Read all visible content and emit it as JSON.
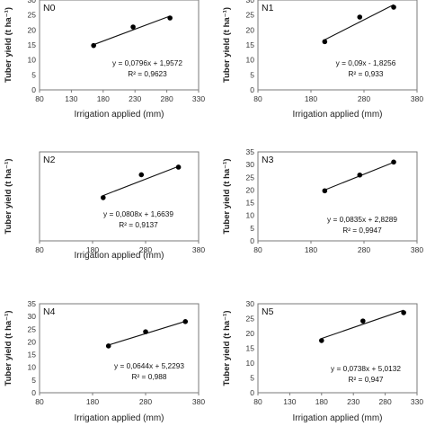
{
  "chart_data": [
    {
      "type": "scatter",
      "panel_label": "N0",
      "xlabel": "Irrigation applied (mm)",
      "ylabel": "Tuber yield (t ha⁻¹)",
      "xlim": [
        80,
        330
      ],
      "ylim": [
        0,
        30
      ],
      "x_ticks": [
        "80",
        "130",
        "180",
        "230",
        "280",
        "330"
      ],
      "y_ticks": [
        "0",
        "5",
        "10",
        "15",
        "20",
        "25",
        "30"
      ],
      "points": [
        {
          "x": 165,
          "y": 14.8
        },
        {
          "x": 227,
          "y": 21.0
        },
        {
          "x": 285,
          "y": 24.0
        }
      ],
      "trendline": {
        "equation": "y = 0,0796x + 1,9572",
        "r2": "R² = 0,9623",
        "slope": 0.0796,
        "intercept": 1.9572,
        "x_range": [
          165,
          285
        ]
      }
    },
    {
      "type": "scatter",
      "panel_label": "N1",
      "xlabel": "Irrigation applied (mm)",
      "ylabel": "Tuber yield (t ha⁻¹)",
      "xlim": [
        80,
        380
      ],
      "ylim": [
        0,
        30
      ],
      "x_ticks": [
        "80",
        "180",
        "280",
        "380"
      ],
      "y_ticks": [
        "0",
        "5",
        "10",
        "15",
        "20",
        "25",
        "30"
      ],
      "points": [
        {
          "x": 206,
          "y": 16.1
        },
        {
          "x": 272,
          "y": 24.3
        },
        {
          "x": 336,
          "y": 27.6
        }
      ],
      "trendline": {
        "equation": "y = 0,09x - 1,8256",
        "r2": "R² = 0,933",
        "slope": 0.09,
        "intercept": -1.8256,
        "x_range": [
          206,
          336
        ]
      }
    },
    {
      "type": "scatter",
      "panel_label": "N2",
      "xlabel": "Irrigation applied (mm)",
      "ylabel": "Tuber yield (t ha⁻¹)",
      "xlim": [
        80,
        380
      ],
      "ylim": [
        0,
        35
      ],
      "x_ticks": [
        "80",
        "180",
        "280",
        "380"
      ],
      "y_ticks": [],
      "points": [
        {
          "x": 200,
          "y": 17.0
        },
        {
          "x": 272,
          "y": 26.0
        },
        {
          "x": 342,
          "y": 29.0
        }
      ],
      "trendline": {
        "equation": "y = 0,0808x + 1,6639",
        "r2": "R² = 0,9137",
        "slope": 0.0808,
        "intercept": 1.6639,
        "x_range": [
          200,
          342
        ]
      }
    },
    {
      "type": "scatter",
      "panel_label": "N3",
      "xlabel": "",
      "ylabel": "Tuber yield (t ha⁻¹)",
      "xlim": [
        80,
        380
      ],
      "ylim": [
        0,
        35
      ],
      "x_ticks": [
        "80",
        "180",
        "280",
        "380"
      ],
      "y_ticks": [
        "0",
        "5",
        "10",
        "15",
        "20",
        "25",
        "30",
        "35"
      ],
      "points": [
        {
          "x": 206,
          "y": 19.7
        },
        {
          "x": 272,
          "y": 25.9
        },
        {
          "x": 336,
          "y": 31.0
        }
      ],
      "trendline": {
        "equation": "y = 0,0835x + 2,8289",
        "r2": "R² = 0,9947",
        "slope": 0.0835,
        "intercept": 2.8289,
        "x_range": [
          206,
          336
        ]
      }
    },
    {
      "type": "scatter",
      "panel_label": "N4",
      "xlabel": "Irrigation applied (mm)",
      "ylabel": "Tuber yield (t ha⁻¹)",
      "xlim": [
        80,
        380
      ],
      "ylim": [
        0,
        35
      ],
      "x_ticks": [
        "80",
        "180",
        "280",
        "380"
      ],
      "y_ticks": [
        "0",
        "5",
        "10",
        "15",
        "20",
        "25",
        "30",
        "35"
      ],
      "points": [
        {
          "x": 210,
          "y": 18.4
        },
        {
          "x": 280,
          "y": 24.0
        },
        {
          "x": 355,
          "y": 28.0
        }
      ],
      "trendline": {
        "equation": "y = 0,0644x + 5,2293",
        "r2": "R² = 0,988",
        "slope": 0.0644,
        "intercept": 5.2293,
        "x_range": [
          210,
          355
        ]
      }
    },
    {
      "type": "scatter",
      "panel_label": "N5",
      "xlabel": "Irrigation applied (mm)",
      "ylabel": "Tuber yield (t ha⁻¹)",
      "xlim": [
        80,
        330
      ],
      "ylim": [
        0,
        30
      ],
      "x_ticks": [
        "80",
        "130",
        "180",
        "230",
        "280",
        "330"
      ],
      "y_ticks": [
        "0",
        "5",
        "10",
        "15",
        "20",
        "25",
        "30"
      ],
      "points": [
        {
          "x": 180,
          "y": 17.6
        },
        {
          "x": 245,
          "y": 24.2
        },
        {
          "x": 309,
          "y": 27.0
        }
      ],
      "trendline": {
        "equation": "y = 0,0738x + 5,0132",
        "r2": "R² = 0,947",
        "slope": 0.0738,
        "intercept": 5.0132,
        "x_range": [
          180,
          309
        ]
      }
    }
  ]
}
